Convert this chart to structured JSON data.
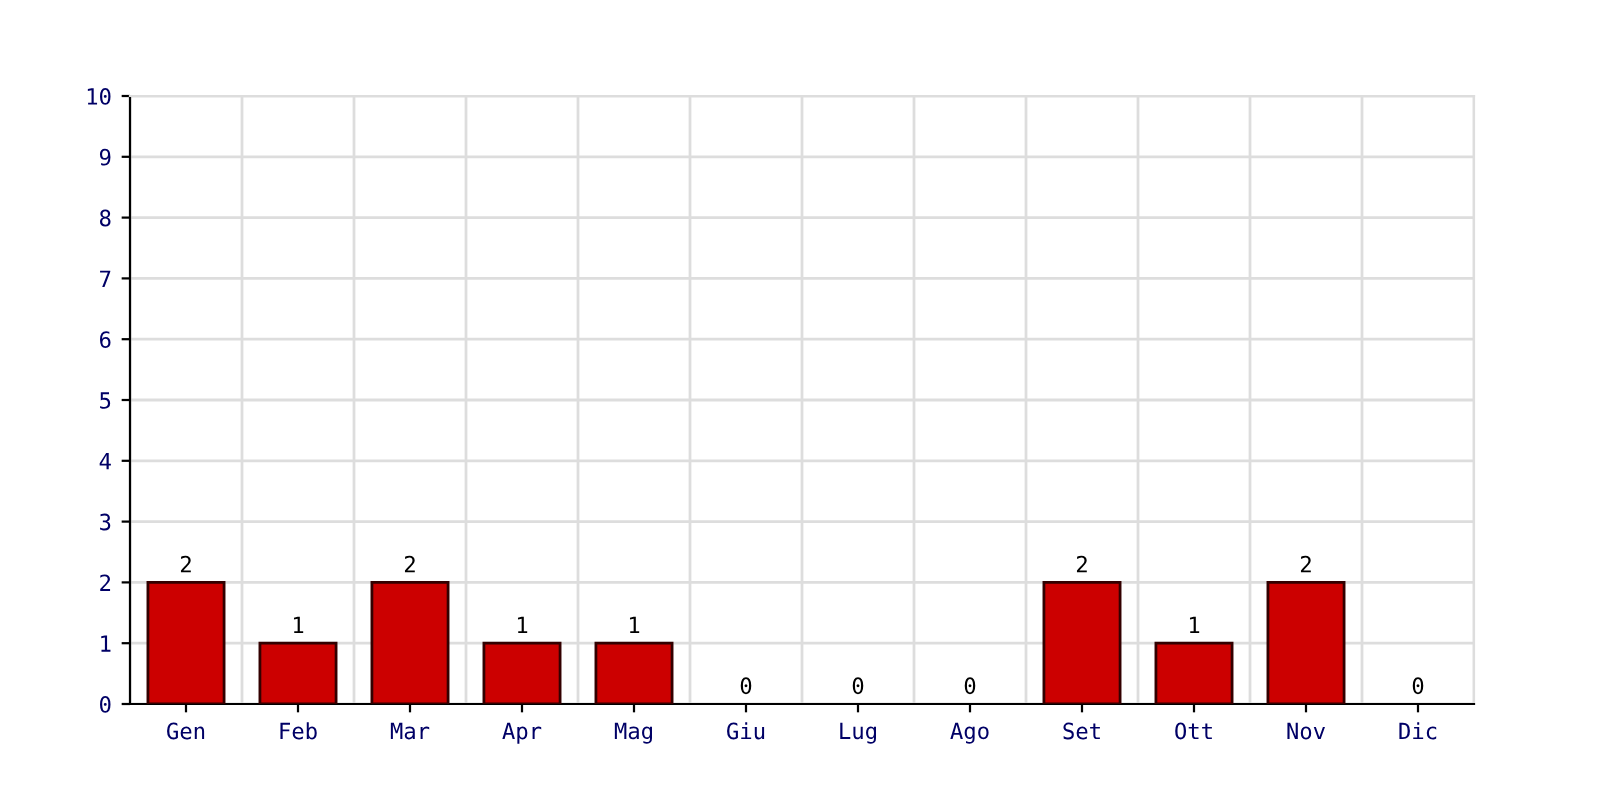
{
  "chart_data": {
    "type": "bar",
    "categories": [
      "Gen",
      "Feb",
      "Mar",
      "Apr",
      "Mag",
      "Giu",
      "Lug",
      "Ago",
      "Set",
      "Ott",
      "Nov",
      "Dic"
    ],
    "values": [
      2,
      1,
      2,
      1,
      1,
      0,
      0,
      0,
      2,
      1,
      2,
      0
    ],
    "color": "#cc0000",
    "ylim": [
      0,
      10
    ],
    "yticks": [
      0,
      1,
      2,
      3,
      4,
      5,
      6,
      7,
      8,
      9,
      10
    ],
    "grid": true,
    "data_labels": true
  }
}
